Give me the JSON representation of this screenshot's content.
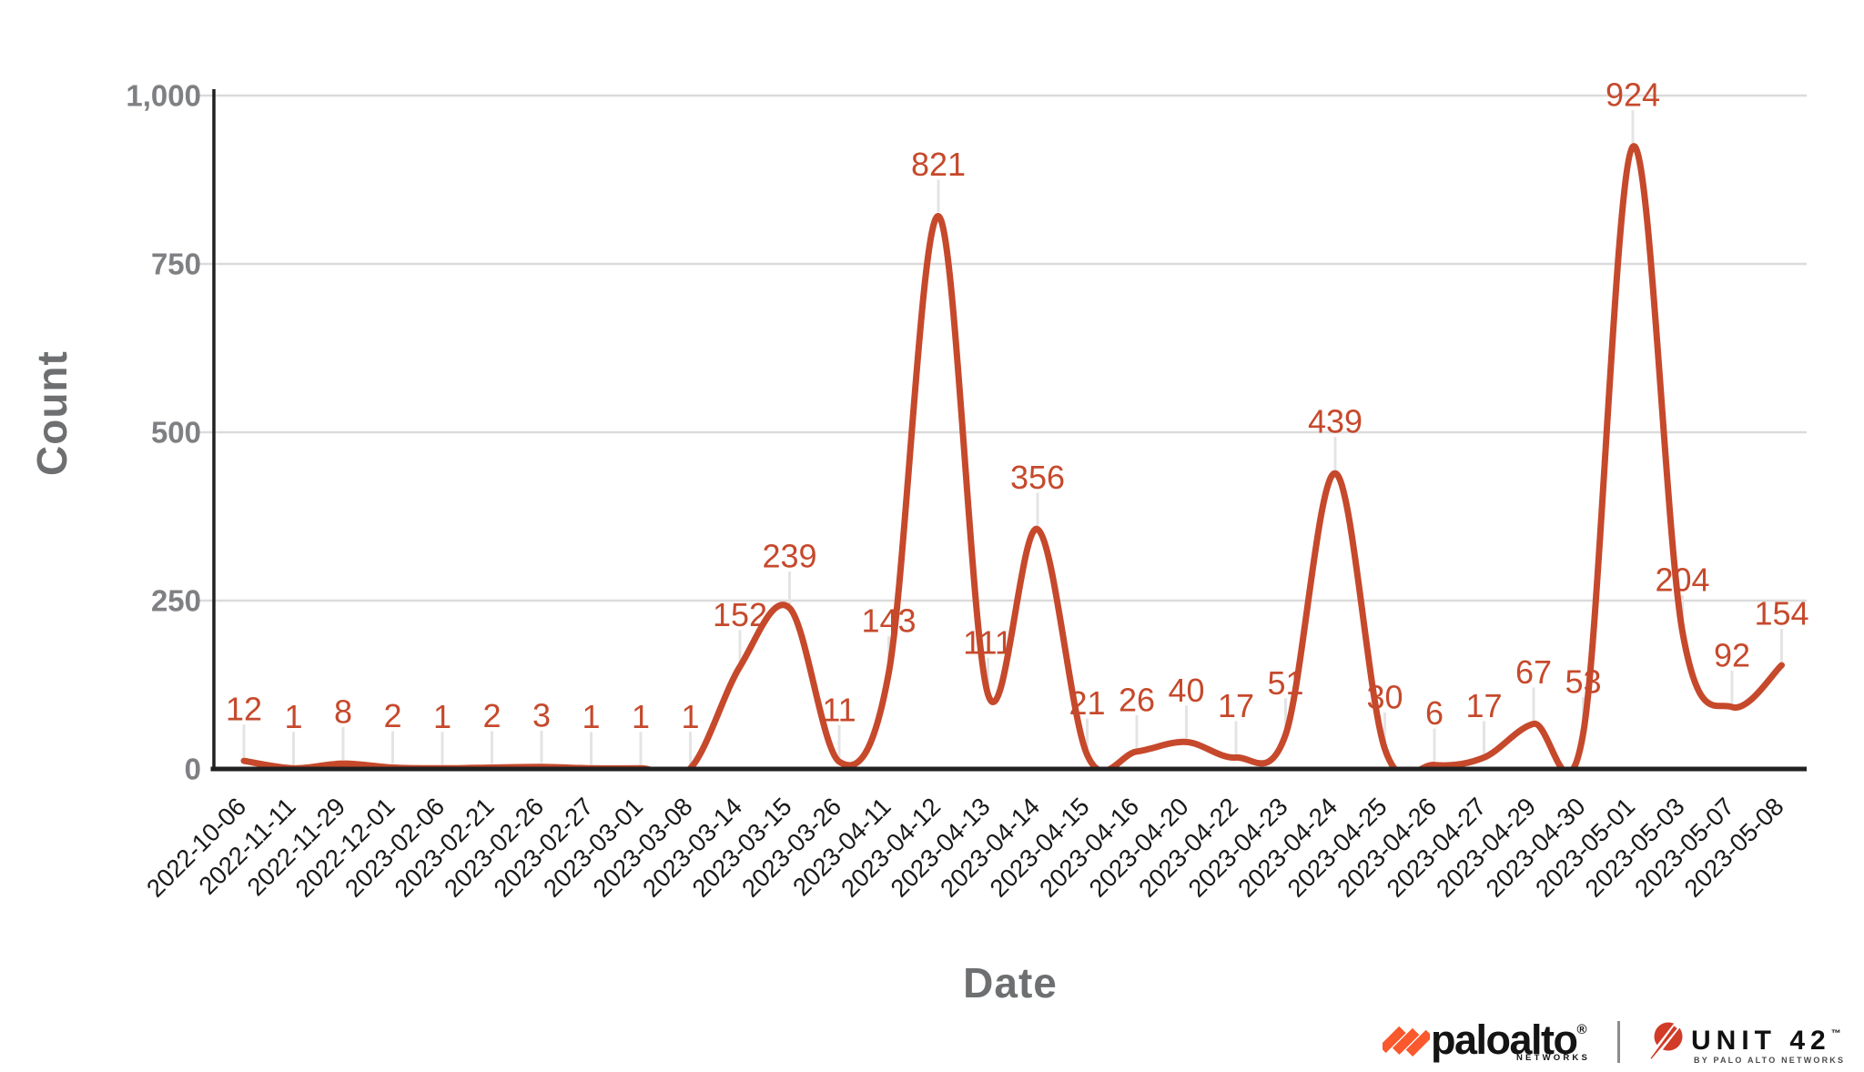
{
  "chart_data": {
    "type": "line",
    "title": "",
    "xlabel": "Date",
    "ylabel": "Count",
    "categories": [
      "2022-10-06",
      "2022-11-11",
      "2022-11-29",
      "2022-12-01",
      "2023-02-06",
      "2023-02-21",
      "2023-02-26",
      "2023-02-27",
      "2023-03-01",
      "2023-03-08",
      "2023-03-14",
      "2023-03-15",
      "2023-03-26",
      "2023-04-11",
      "2023-04-12",
      "2023-04-13",
      "2023-04-14",
      "2023-04-15",
      "2023-04-16",
      "2023-04-20",
      "2023-04-22",
      "2023-04-23",
      "2023-04-24",
      "2023-04-25",
      "2023-04-26",
      "2023-04-27",
      "2023-04-29",
      "2023-04-30",
      "2023-05-01",
      "2023-05-03",
      "2023-05-07",
      "2023-05-08"
    ],
    "values": [
      12,
      1,
      8,
      2,
      1,
      2,
      3,
      1,
      1,
      1,
      152,
      239,
      11,
      143,
      821,
      111,
      356,
      21,
      26,
      40,
      17,
      51,
      439,
      30,
      6,
      17,
      67,
      53,
      924,
      204,
      92,
      154
    ],
    "data_labels": [
      "12",
      "1",
      "8",
      "2",
      "1",
      "2",
      "3",
      "1",
      "1",
      "1",
      "152",
      "239",
      "11",
      "143",
      "821",
      "111",
      "356",
      "21",
      "26",
      "40",
      "17",
      "51",
      "439",
      "30",
      "6",
      "17",
      "67",
      "53",
      "924",
      "204",
      "92",
      "154"
    ],
    "ylim": [
      0,
      1000
    ],
    "yticks": [
      {
        "value": 0,
        "label": "0"
      },
      {
        "value": 250,
        "label": "250"
      },
      {
        "value": 500,
        "label": "500"
      },
      {
        "value": 750,
        "label": "750"
      },
      {
        "value": 1000,
        "label": "1,000"
      }
    ],
    "grid": true,
    "legend": "none",
    "smooth": true,
    "colors": {
      "line": "#C6492C",
      "data_label": "#C6492C",
      "grid": "#DBDBDB",
      "leader": "#E4E4E4",
      "axis": "#212121",
      "ytick_label": "#7E8083",
      "xtick_label": "#1A1A1A",
      "axis_title": "#6D6F71"
    }
  },
  "footer": {
    "paloalto": {
      "wordmark": "paloalto",
      "registered": "®",
      "networks": "NETWORKS",
      "brand_color": "#FA582D"
    },
    "unit42": {
      "wordmark": "UNIT 42",
      "trademark": "™",
      "byline": "BY PALO ALTO NETWORKS",
      "brand_color": "#D13B27"
    }
  }
}
